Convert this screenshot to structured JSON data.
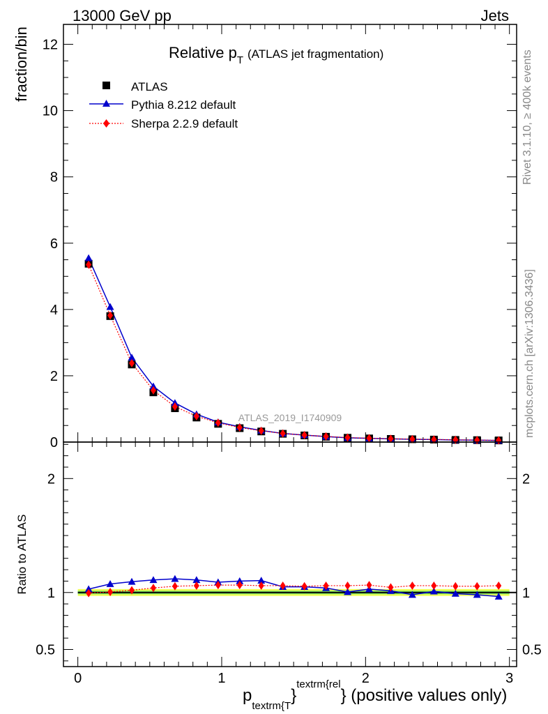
{
  "header": {
    "left": "13000 GeV pp",
    "right": "Jets"
  },
  "side_labels": {
    "rivet": "Rivet 3.1.10, ≥ 400k events",
    "mcplots": "mcplots.cern.ch [arXiv:1306.3436]"
  },
  "watermark": "ATLAS_2019_I1740909",
  "colors": {
    "atlas": "#000000",
    "pythia": "#0000cc",
    "sherpa": "#ff0000",
    "band_inner": "#33cc66",
    "band_outer": "#eeff55"
  },
  "chart_data": [
    {
      "type": "line",
      "title_main": "Relative p",
      "title_sub": "T",
      "title_rest": "(ATLAS jet fragmentation)",
      "ylabel": "fraction/bin",
      "xlim": [
        -0.1,
        3.05
      ],
      "ylim": [
        0,
        12.6
      ],
      "yticks": [
        0,
        2,
        4,
        6,
        8,
        10,
        12
      ],
      "legend": {
        "placement": "top-left",
        "entries": [
          "ATLAS",
          "Pythia 8.212 default",
          "Sherpa 2.2.9 default"
        ]
      },
      "x": [
        0.075,
        0.225,
        0.375,
        0.525,
        0.675,
        0.825,
        0.975,
        1.125,
        1.275,
        1.425,
        1.575,
        1.725,
        1.875,
        2.025,
        2.175,
        2.325,
        2.475,
        2.625,
        2.775,
        2.925
      ],
      "series": [
        {
          "name": "ATLAS",
          "marker": "square",
          "values": [
            5.38,
            3.8,
            2.34,
            1.5,
            1.02,
            0.74,
            0.55,
            0.42,
            0.32,
            0.25,
            0.2,
            0.16,
            0.13,
            0.11,
            0.095,
            0.085,
            0.075,
            0.065,
            0.058,
            0.05
          ]
        },
        {
          "name": "Pythia 8.212 default",
          "marker": "triangle",
          "values": [
            5.55,
            4.08,
            2.55,
            1.68,
            1.18,
            0.84,
            0.6,
            0.46,
            0.35,
            0.26,
            0.21,
            0.165,
            0.13,
            0.112,
            0.097,
            0.083,
            0.076,
            0.064,
            0.057,
            0.048
          ]
        },
        {
          "name": "Sherpa 2.2.9 default",
          "marker": "diamond",
          "values": [
            5.35,
            3.82,
            2.38,
            1.56,
            1.07,
            0.78,
            0.58,
            0.44,
            0.34,
            0.26,
            0.21,
            0.17,
            0.137,
            0.116,
            0.099,
            0.09,
            0.079,
            0.068,
            0.061,
            0.053
          ]
        }
      ]
    },
    {
      "type": "line",
      "ylabel": "Ratio to ATLAS",
      "xlabel_main": "p",
      "xlabel_sub": "textrm{T",
      "xlabel_sup": "textrm{rel",
      "xlabel_brace": "}",
      "xlabel_rest": "} (positive values only)",
      "xlim": [
        -0.1,
        3.05
      ],
      "ylim": [
        0.35,
        2.32
      ],
      "yticks": [
        0.5,
        1,
        2
      ],
      "ytick_labels": [
        "0.5",
        "1",
        "2"
      ],
      "xticks": [
        0,
        1,
        2,
        3
      ],
      "xtick_labels": [
        "0",
        "1",
        "2",
        "3"
      ],
      "band_outer": [
        0.97,
        1.03
      ],
      "band_inner": [
        0.985,
        1.015
      ],
      "x": [
        0.075,
        0.225,
        0.375,
        0.525,
        0.675,
        0.825,
        0.975,
        1.125,
        1.275,
        1.425,
        1.575,
        1.725,
        1.875,
        2.025,
        2.175,
        2.325,
        2.475,
        2.625,
        2.775,
        2.925
      ],
      "series": [
        {
          "name": "ATLAS",
          "values": [
            1,
            1,
            1,
            1,
            1,
            1,
            1,
            1,
            1,
            1,
            1,
            1,
            1,
            1,
            1,
            1,
            1,
            1,
            1,
            1
          ]
        },
        {
          "name": "Pythia 8.212 default",
          "marker": "triangle",
          "values": [
            1.03,
            1.075,
            1.095,
            1.11,
            1.12,
            1.11,
            1.09,
            1.1,
            1.105,
            1.05,
            1.05,
            1.04,
            1.005,
            1.03,
            1.015,
            0.98,
            1.01,
            0.99,
            0.98,
            0.965
          ]
        },
        {
          "name": "Sherpa 2.2.9 default",
          "marker": "diamond",
          "values": [
            0.995,
            1.005,
            1.02,
            1.04,
            1.055,
            1.06,
            1.065,
            1.065,
            1.06,
            1.06,
            1.055,
            1.06,
            1.06,
            1.065,
            1.045,
            1.06,
            1.06,
            1.055,
            1.055,
            1.06
          ]
        }
      ]
    }
  ]
}
